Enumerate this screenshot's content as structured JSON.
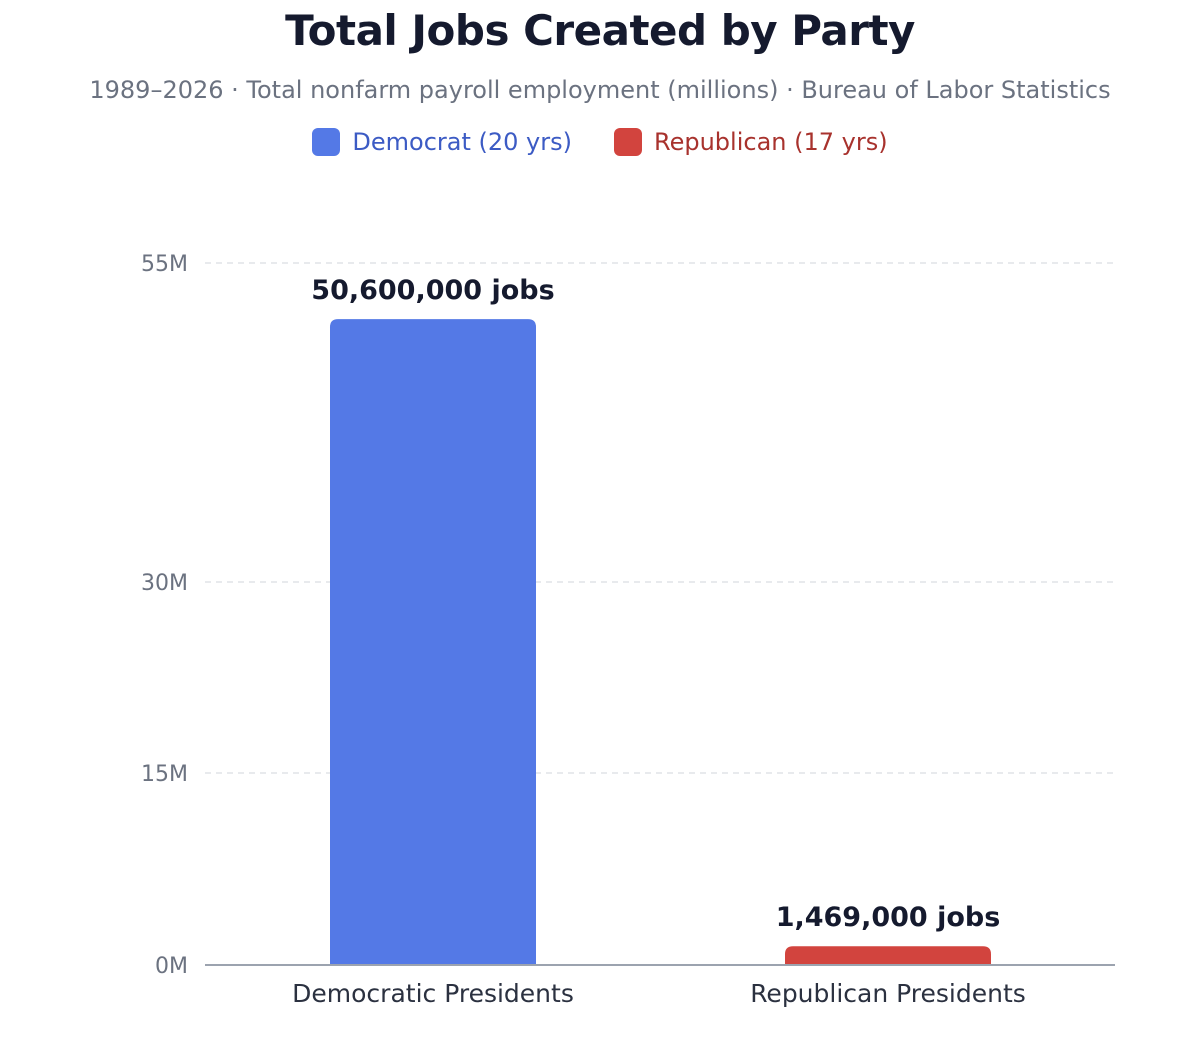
{
  "colors": {
    "democrat": "#5479e6",
    "republican": "#d2443e",
    "title": "#151a2e",
    "axis_text": "#6b7280",
    "grid": "#d1d5db"
  },
  "chart_data": {
    "type": "bar",
    "title": "Total Jobs Created by Party",
    "subtitle": "1989–2026 · Total nonfarm payroll employment (millions) · Bureau of Labor Statistics",
    "legend": [
      {
        "label": "Democrat (20 yrs)",
        "color": "#5479e6"
      },
      {
        "label": "Republican (17 yrs)",
        "color": "#d2443e"
      }
    ],
    "categories": [
      "Democratic Presidents",
      "Republican Presidents"
    ],
    "values": [
      50600000,
      1469000
    ],
    "data_labels": [
      "50,600,000 jobs",
      "1,469,000 jobs"
    ],
    "bar_colors": [
      "#5479e6",
      "#d2443e"
    ],
    "ytick_values": [
      0,
      15000000,
      30000000,
      55000000
    ],
    "ytick_labels": [
      "0M",
      "15M",
      "30M",
      "55M"
    ],
    "ylim": [
      0,
      55000000
    ],
    "grid": true,
    "legend_position": "top-center"
  }
}
